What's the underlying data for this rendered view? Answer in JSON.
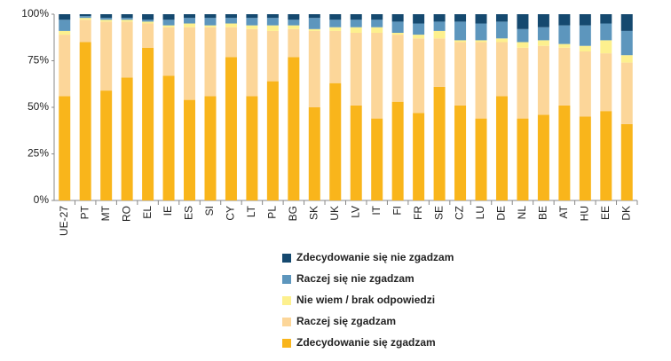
{
  "chart_data": {
    "type": "stacked_bar",
    "categories": [
      "UE-27",
      "PT",
      "MT",
      "RO",
      "EL",
      "IE",
      "ES",
      "SI",
      "CY",
      "LT",
      "PL",
      "BG",
      "SK",
      "UK",
      "LV",
      "IT",
      "FI",
      "FR",
      "SE",
      "CZ",
      "LU",
      "DE",
      "NL",
      "BE",
      "AT",
      "HU",
      "EE",
      "DK"
    ],
    "series": [
      {
        "name": "Zdecydowanie się zgadzam",
        "color": "#f9b51b",
        "values": [
          56,
          85,
          59,
          66,
          82,
          67,
          54,
          56,
          77,
          56,
          64,
          77,
          50,
          63,
          51,
          44,
          53,
          47,
          61,
          51,
          44,
          56,
          44,
          46,
          51,
          45,
          48,
          41
        ]
      },
      {
        "name": "Raczej się zgadzam",
        "color": "#fcd699",
        "values": [
          33,
          12,
          37,
          30,
          13,
          26,
          39,
          37,
          16,
          36,
          27,
          15,
          41,
          28,
          39,
          46,
          36,
          40,
          26,
          34,
          41,
          29,
          38,
          37,
          31,
          35,
          31,
          33
        ]
      },
      {
        "name": "Nie wiem / brak odpowiedzi",
        "color": "#fdf08e",
        "values": [
          2,
          1,
          1,
          1,
          1,
          1,
          2,
          1,
          2,
          2,
          3,
          2,
          1,
          2,
          3,
          3,
          1,
          2,
          4,
          1,
          1,
          2,
          3,
          3,
          2,
          3,
          7,
          4
        ]
      },
      {
        "name": "Raczej się nie zgadzam",
        "color": "#5d96bd",
        "values": [
          6,
          1,
          1,
          1,
          1,
          3,
          3,
          4,
          3,
          4,
          4,
          3,
          6,
          4,
          4,
          4,
          6,
          6,
          5,
          10,
          9,
          9,
          7,
          7,
          10,
          11,
          9,
          13
        ]
      },
      {
        "name": "Zdecydowanie się nie zgadzam",
        "color": "#15496f",
        "values": [
          3,
          1,
          2,
          2,
          3,
          3,
          2,
          2,
          2,
          2,
          2,
          3,
          2,
          3,
          3,
          3,
          4,
          5,
          4,
          4,
          5,
          4,
          8,
          7,
          6,
          6,
          5,
          9
        ]
      }
    ],
    "ylim": [
      0,
      100
    ],
    "yticks": [
      {
        "value": 0,
        "label": "0%"
      },
      {
        "value": 25,
        "label": "25%"
      },
      {
        "value": 50,
        "label": "50%"
      },
      {
        "value": 75,
        "label": "75%"
      },
      {
        "value": 100,
        "label": "100%"
      }
    ]
  }
}
